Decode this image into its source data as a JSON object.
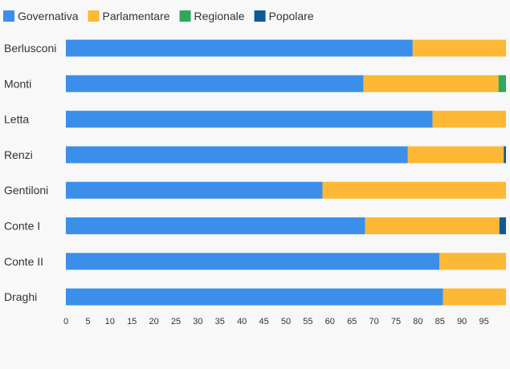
{
  "chart_data": {
    "type": "bar",
    "orientation": "horizontal",
    "stacked": true,
    "categories": [
      "Berlusconi",
      "Monti",
      "Letta",
      "Renzi",
      "Gentiloni",
      "Conte I",
      "Conte II",
      "Draghi"
    ],
    "series": [
      {
        "name": "Governativa",
        "color": "#3b8fea",
        "values": [
          78.8,
          67.6,
          83.3,
          77.7,
          58.3,
          68.0,
          84.9,
          85.7
        ]
      },
      {
        "name": "Parlamentare",
        "color": "#fdb835",
        "values": [
          21.2,
          30.7,
          16.7,
          21.8,
          41.7,
          30.5,
          15.1,
          14.3
        ]
      },
      {
        "name": "Regionale",
        "color": "#2ea85d",
        "values": [
          0,
          1.7,
          0,
          0,
          0,
          0,
          0,
          0
        ]
      },
      {
        "name": "Popolare",
        "color": "#0d5a94",
        "values": [
          0,
          0,
          0,
          0.5,
          0,
          1.5,
          0,
          0
        ]
      }
    ],
    "xticks": [
      "0",
      "5",
      "10",
      "15",
      "20",
      "25",
      "30",
      "35",
      "40",
      "45",
      "50",
      "55",
      "60",
      "65",
      "70",
      "75",
      "80",
      "85",
      "90",
      "95"
    ],
    "xlim": [
      0,
      100
    ],
    "legend_position": "top-left",
    "grid": false
  }
}
